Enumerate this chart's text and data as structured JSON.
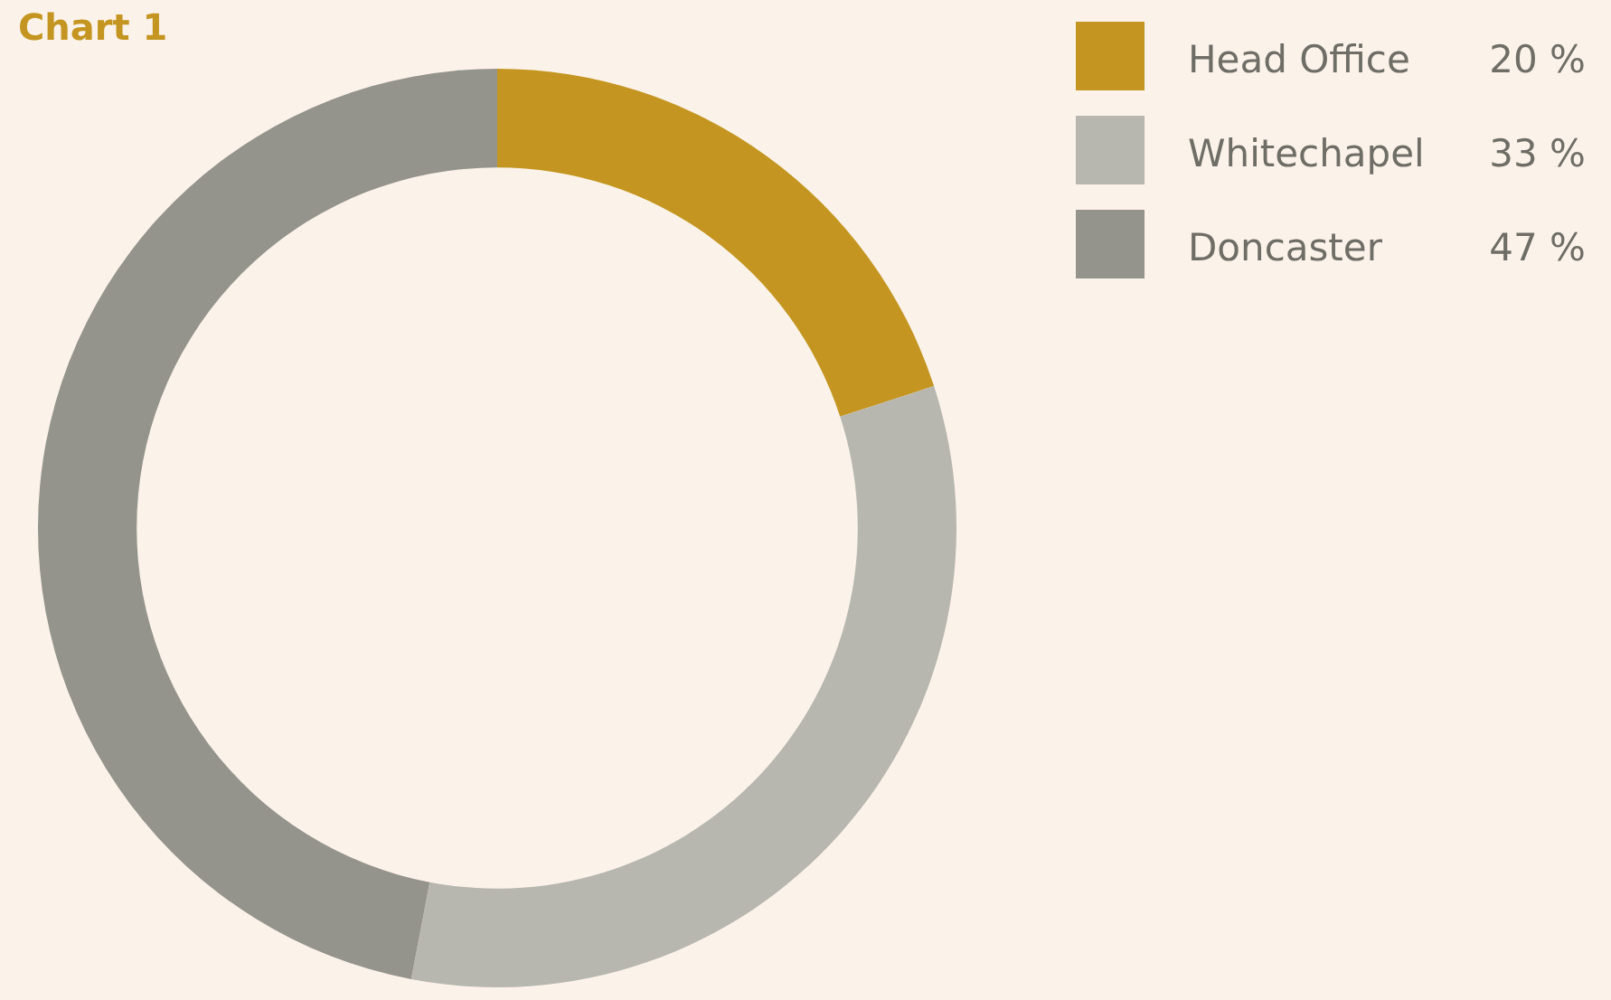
{
  "chart_data": {
    "type": "donut",
    "title": "Chart 1",
    "categories": [
      "Head Office",
      "Whitechapel",
      "Doncaster"
    ],
    "values": [
      20,
      33,
      47
    ],
    "colors": [
      "#c49621",
      "#b8b7af",
      "#95948c"
    ],
    "value_labels": [
      "20 %",
      "33 %",
      "47 %"
    ],
    "legend": "top right"
  }
}
